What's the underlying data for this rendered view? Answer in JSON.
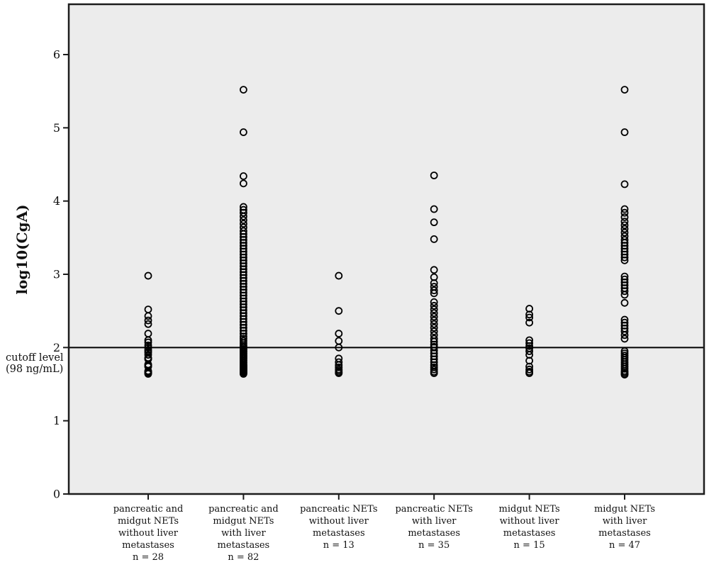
{
  "figure": {
    "background": "#ffffff",
    "plot_background": "#ececec",
    "frame_color": "#1c1c1c",
    "point_color": "#000000",
    "cutoff_line_color": "#000000"
  },
  "chart_data": {
    "type": "scatter",
    "subtype": "strip-plot",
    "title": "",
    "xlabel": "",
    "ylabel": "log10(CgA)",
    "ylim": [
      0,
      6.7
    ],
    "yticks": [
      0,
      1,
      2,
      3,
      4,
      5,
      6
    ],
    "grid": false,
    "legend": false,
    "cutoff": {
      "value": 2,
      "label_lines": [
        "cutoff level",
        "(98 ng/mL)"
      ]
    },
    "groups": [
      {
        "label_lines": [
          "pancreatic and",
          "midgut NETs",
          "without liver",
          "metastases",
          "n = 28"
        ],
        "n": 28,
        "values": [
          2.98,
          2.52,
          2.43,
          2.37,
          2.32,
          2.19,
          2.1,
          2.07,
          2.03,
          2.0,
          1.97,
          1.95,
          1.93,
          1.9,
          1.86,
          1.85,
          1.84,
          1.77,
          1.76,
          1.75,
          1.74,
          1.68,
          1.67,
          1.66,
          1.66,
          1.65,
          1.65,
          1.64
        ]
      },
      {
        "label_lines": [
          "pancreatic and",
          "midgut NETs",
          "with liver",
          "metastases",
          "n = 82"
        ],
        "n": 82,
        "values": [
          5.52,
          4.94,
          4.34,
          4.24,
          3.92,
          3.88,
          3.84,
          3.79,
          3.74,
          3.69,
          3.64,
          3.59,
          3.55,
          3.51,
          3.47,
          3.43,
          3.39,
          3.35,
          3.31,
          3.27,
          3.23,
          3.19,
          3.15,
          3.11,
          3.07,
          3.03,
          2.99,
          2.95,
          2.91,
          2.87,
          2.83,
          2.79,
          2.75,
          2.71,
          2.67,
          2.63,
          2.59,
          2.55,
          2.51,
          2.47,
          2.43,
          2.39,
          2.35,
          2.31,
          2.27,
          2.23,
          2.19,
          2.15,
          2.12,
          2.09,
          2.06,
          2.03,
          2.01,
          2.0,
          1.98,
          1.97,
          1.95,
          1.94,
          1.92,
          1.91,
          1.89,
          1.88,
          1.86,
          1.85,
          1.83,
          1.82,
          1.8,
          1.79,
          1.77,
          1.76,
          1.75,
          1.74,
          1.73,
          1.72,
          1.71,
          1.7,
          1.69,
          1.68,
          1.67,
          1.66,
          1.65,
          1.64
        ]
      },
      {
        "label_lines": [
          "pancreatic NETs",
          "without liver",
          "metastases",
          "n = 13"
        ],
        "n": 13,
        "values": [
          2.98,
          2.5,
          2.19,
          2.09,
          2.0,
          1.85,
          1.8,
          1.76,
          1.73,
          1.7,
          1.68,
          1.66,
          1.65
        ]
      },
      {
        "label_lines": [
          "pancreatic NETs",
          "with liver",
          "metastases",
          "n = 35"
        ],
        "n": 35,
        "values": [
          4.35,
          3.89,
          3.71,
          3.48,
          3.06,
          2.96,
          2.88,
          2.83,
          2.78,
          2.74,
          2.62,
          2.57,
          2.52,
          2.47,
          2.42,
          2.37,
          2.32,
          2.27,
          2.22,
          2.17,
          2.12,
          2.08,
          2.04,
          2.01,
          2.0,
          1.96,
          1.92,
          1.88,
          1.84,
          1.8,
          1.76,
          1.73,
          1.7,
          1.67,
          1.65
        ]
      },
      {
        "label_lines": [
          "midgut NETs",
          "without liver",
          "metastases",
          "n = 15"
        ],
        "n": 15,
        "values": [
          2.53,
          2.45,
          2.41,
          2.34,
          2.1,
          2.06,
          2.02,
          1.99,
          1.95,
          1.9,
          1.82,
          1.74,
          1.7,
          1.67,
          1.65
        ]
      },
      {
        "label_lines": [
          "midgut NETs",
          "with liver",
          "metastases",
          "n = 47"
        ],
        "n": 47,
        "values": [
          5.52,
          4.94,
          4.23,
          3.89,
          3.84,
          3.78,
          3.72,
          3.67,
          3.62,
          3.57,
          3.52,
          3.47,
          3.43,
          3.39,
          3.35,
          3.31,
          3.27,
          3.23,
          3.19,
          2.97,
          2.93,
          2.89,
          2.85,
          2.81,
          2.77,
          2.72,
          2.61,
          2.38,
          2.34,
          2.3,
          2.26,
          2.22,
          2.17,
          2.12,
          1.95,
          1.92,
          1.89,
          1.86,
          1.83,
          1.8,
          1.77,
          1.74,
          1.71,
          1.68,
          1.66,
          1.64,
          1.63
        ]
      }
    ]
  }
}
